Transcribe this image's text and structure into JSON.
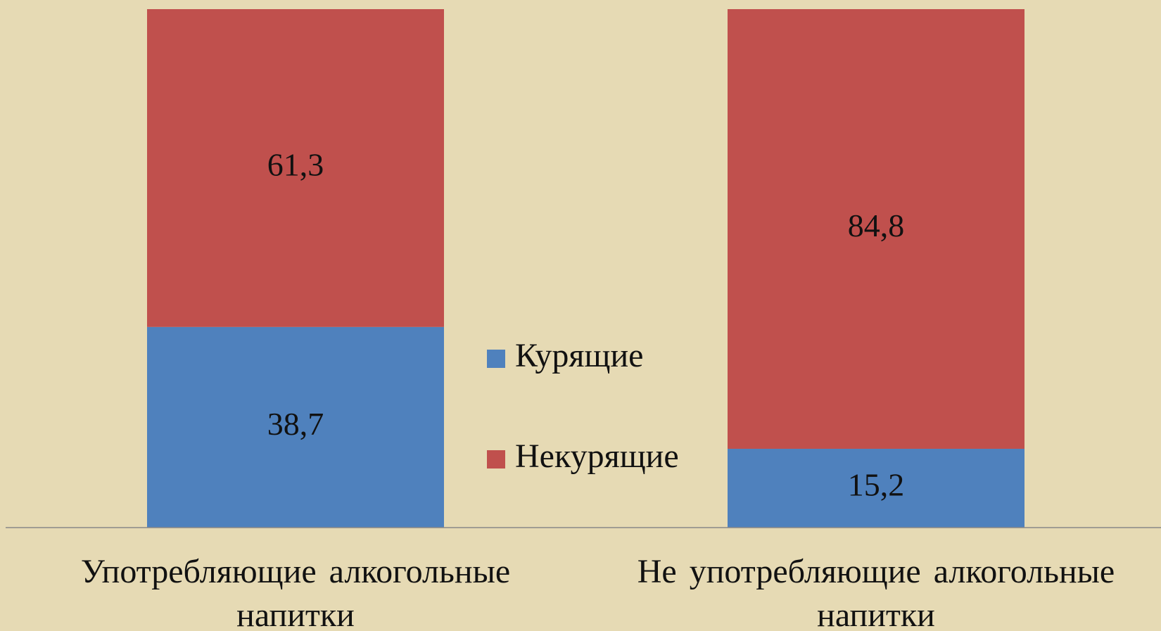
{
  "chart_data": {
    "type": "stacked_bar",
    "categories": [
      "Употребляющие алкогольные напитки",
      "Не употребляющие алкогольные напитки"
    ],
    "series": [
      {
        "name": "Курящие",
        "color": "#4f81bd",
        "values": [
          38.7,
          15.2
        ],
        "value_labels": [
          "38,7",
          "15,2"
        ]
      },
      {
        "name": "Некурящие",
        "color": "#c0504d",
        "values": [
          61.3,
          84.8
        ],
        "value_labels": [
          "61,3",
          "84,8"
        ]
      }
    ],
    "ylim": [
      0,
      100
    ]
  }
}
